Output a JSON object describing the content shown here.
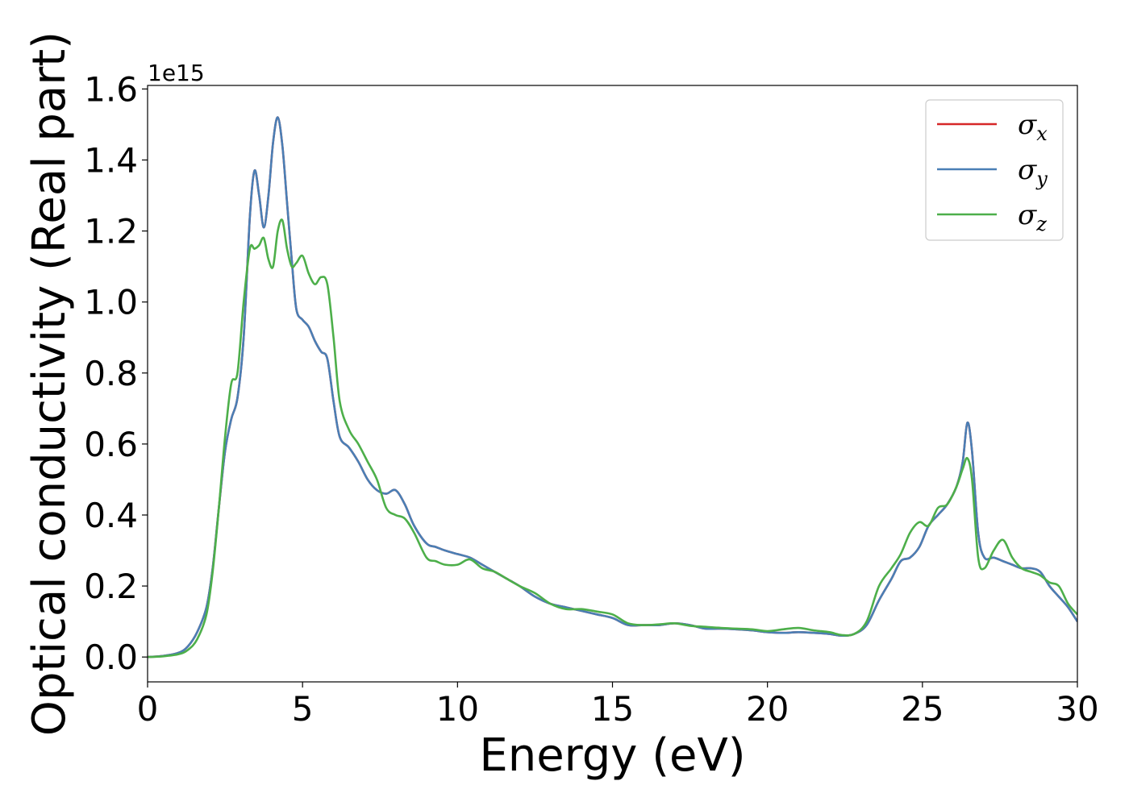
{
  "chart_data": {
    "type": "line",
    "title": "",
    "xlabel": "Energy (eV)",
    "ylabel": "Optical conductivity (Real part)",
    "y_offset_label": "1e15",
    "xlim": [
      0,
      30
    ],
    "ylim": [
      -0.07,
      1.61
    ],
    "x_ticks": [
      0,
      5,
      10,
      15,
      20,
      25,
      30
    ],
    "x_tick_labels": [
      "0",
      "5",
      "10",
      "15",
      "20",
      "25",
      "30"
    ],
    "y_ticks": [
      0.0,
      0.2,
      0.4,
      0.6,
      0.8,
      1.0,
      1.2,
      1.4,
      1.6
    ],
    "y_tick_labels": [
      "0.0",
      "0.2",
      "0.4",
      "0.6",
      "0.8",
      "1.0",
      "1.2",
      "1.4",
      "1.6"
    ],
    "grid": false,
    "legend_position": "top-right",
    "series": [
      {
        "name": "σ",
        "subscript": "x",
        "color": "#d62728",
        "x": [
          0,
          0.5,
          1.0,
          1.3,
          1.6,
          1.9,
          2.1,
          2.3,
          2.5,
          2.7,
          2.9,
          3.1,
          3.3,
          3.45,
          3.6,
          3.75,
          3.9,
          4.05,
          4.2,
          4.35,
          4.5,
          4.65,
          4.8,
          5.0,
          5.2,
          5.4,
          5.6,
          5.8,
          6.0,
          6.2,
          6.5,
          6.8,
          7.1,
          7.4,
          7.7,
          8.0,
          8.3,
          8.6,
          9.0,
          9.3,
          9.6,
          10.0,
          10.4,
          10.8,
          11.2,
          11.6,
          12.0,
          12.5,
          13.0,
          13.5,
          14.0,
          14.5,
          15.0,
          15.5,
          16.0,
          16.5,
          17.0,
          17.5,
          18.0,
          18.5,
          19.0,
          19.5,
          20.0,
          20.5,
          21.0,
          21.5,
          22.0,
          22.4,
          22.8,
          23.2,
          23.6,
          24.0,
          24.3,
          24.6,
          24.9,
          25.2,
          25.5,
          25.8,
          26.1,
          26.3,
          26.45,
          26.6,
          26.8,
          27.0,
          27.3,
          27.6,
          27.9,
          28.2,
          28.5,
          28.8,
          29.1,
          29.4,
          29.7,
          30.0
        ],
        "values": [
          0.0,
          0.003,
          0.012,
          0.03,
          0.07,
          0.14,
          0.25,
          0.42,
          0.58,
          0.67,
          0.73,
          0.9,
          1.24,
          1.37,
          1.3,
          1.21,
          1.3,
          1.45,
          1.52,
          1.44,
          1.28,
          1.12,
          0.98,
          0.95,
          0.93,
          0.89,
          0.86,
          0.84,
          0.72,
          0.62,
          0.59,
          0.55,
          0.5,
          0.47,
          0.46,
          0.47,
          0.43,
          0.37,
          0.32,
          0.31,
          0.3,
          0.29,
          0.28,
          0.26,
          0.24,
          0.22,
          0.2,
          0.17,
          0.15,
          0.14,
          0.13,
          0.12,
          0.11,
          0.09,
          0.09,
          0.09,
          0.095,
          0.09,
          0.08,
          0.08,
          0.078,
          0.075,
          0.07,
          0.068,
          0.07,
          0.068,
          0.065,
          0.06,
          0.065,
          0.09,
          0.16,
          0.22,
          0.27,
          0.28,
          0.31,
          0.37,
          0.4,
          0.43,
          0.48,
          0.55,
          0.66,
          0.58,
          0.35,
          0.28,
          0.28,
          0.27,
          0.26,
          0.25,
          0.25,
          0.24,
          0.2,
          0.17,
          0.14,
          0.1
        ]
      },
      {
        "name": "σ",
        "subscript": "y",
        "color": "#4a7fb5",
        "x": [
          0,
          0.5,
          1.0,
          1.3,
          1.6,
          1.9,
          2.1,
          2.3,
          2.5,
          2.7,
          2.9,
          3.1,
          3.3,
          3.45,
          3.6,
          3.75,
          3.9,
          4.05,
          4.2,
          4.35,
          4.5,
          4.65,
          4.8,
          5.0,
          5.2,
          5.4,
          5.6,
          5.8,
          6.0,
          6.2,
          6.5,
          6.8,
          7.1,
          7.4,
          7.7,
          8.0,
          8.3,
          8.6,
          9.0,
          9.3,
          9.6,
          10.0,
          10.4,
          10.8,
          11.2,
          11.6,
          12.0,
          12.5,
          13.0,
          13.5,
          14.0,
          14.5,
          15.0,
          15.5,
          16.0,
          16.5,
          17.0,
          17.5,
          18.0,
          18.5,
          19.0,
          19.5,
          20.0,
          20.5,
          21.0,
          21.5,
          22.0,
          22.4,
          22.8,
          23.2,
          23.6,
          24.0,
          24.3,
          24.6,
          24.9,
          25.2,
          25.5,
          25.8,
          26.1,
          26.3,
          26.45,
          26.6,
          26.8,
          27.0,
          27.3,
          27.6,
          27.9,
          28.2,
          28.5,
          28.8,
          29.1,
          29.4,
          29.7,
          30.0
        ],
        "values": [
          0.0,
          0.003,
          0.012,
          0.03,
          0.07,
          0.14,
          0.25,
          0.42,
          0.58,
          0.67,
          0.73,
          0.9,
          1.24,
          1.37,
          1.3,
          1.21,
          1.3,
          1.45,
          1.52,
          1.44,
          1.28,
          1.12,
          0.98,
          0.95,
          0.93,
          0.89,
          0.86,
          0.84,
          0.72,
          0.62,
          0.59,
          0.55,
          0.5,
          0.47,
          0.46,
          0.47,
          0.43,
          0.37,
          0.32,
          0.31,
          0.3,
          0.29,
          0.28,
          0.26,
          0.24,
          0.22,
          0.2,
          0.17,
          0.15,
          0.14,
          0.13,
          0.12,
          0.11,
          0.09,
          0.09,
          0.09,
          0.095,
          0.09,
          0.08,
          0.08,
          0.078,
          0.075,
          0.07,
          0.068,
          0.07,
          0.068,
          0.065,
          0.06,
          0.065,
          0.09,
          0.16,
          0.22,
          0.27,
          0.28,
          0.31,
          0.37,
          0.4,
          0.43,
          0.48,
          0.55,
          0.66,
          0.58,
          0.35,
          0.28,
          0.28,
          0.27,
          0.26,
          0.25,
          0.25,
          0.24,
          0.2,
          0.17,
          0.14,
          0.1
        ]
      },
      {
        "name": "σ",
        "subscript": "z",
        "color": "#4daf4a",
        "x": [
          0,
          0.5,
          1.0,
          1.3,
          1.6,
          1.9,
          2.1,
          2.3,
          2.5,
          2.7,
          2.9,
          3.1,
          3.3,
          3.45,
          3.6,
          3.75,
          3.9,
          4.05,
          4.2,
          4.35,
          4.5,
          4.65,
          4.8,
          5.0,
          5.2,
          5.4,
          5.6,
          5.8,
          6.0,
          6.2,
          6.5,
          6.8,
          7.1,
          7.4,
          7.7,
          8.0,
          8.3,
          8.6,
          9.0,
          9.3,
          9.6,
          10.0,
          10.4,
          10.8,
          11.2,
          11.6,
          12.0,
          12.5,
          13.0,
          13.5,
          14.0,
          14.5,
          15.0,
          15.5,
          16.0,
          16.5,
          17.0,
          17.5,
          18.0,
          18.5,
          19.0,
          19.5,
          20.0,
          20.5,
          21.0,
          21.5,
          22.0,
          22.4,
          22.8,
          23.2,
          23.6,
          24.0,
          24.3,
          24.6,
          24.9,
          25.2,
          25.5,
          25.8,
          26.1,
          26.3,
          26.45,
          26.6,
          26.8,
          27.0,
          27.3,
          27.6,
          27.9,
          28.2,
          28.5,
          28.8,
          29.1,
          29.4,
          29.7,
          30.0
        ],
        "values": [
          0.0,
          0.002,
          0.008,
          0.02,
          0.05,
          0.12,
          0.24,
          0.42,
          0.62,
          0.77,
          0.8,
          1.0,
          1.15,
          1.15,
          1.16,
          1.18,
          1.12,
          1.1,
          1.2,
          1.23,
          1.15,
          1.1,
          1.11,
          1.13,
          1.08,
          1.05,
          1.07,
          1.05,
          0.9,
          0.72,
          0.64,
          0.6,
          0.55,
          0.5,
          0.42,
          0.4,
          0.39,
          0.35,
          0.28,
          0.27,
          0.26,
          0.26,
          0.275,
          0.25,
          0.24,
          0.22,
          0.2,
          0.18,
          0.15,
          0.135,
          0.135,
          0.128,
          0.12,
          0.095,
          0.09,
          0.092,
          0.095,
          0.088,
          0.085,
          0.082,
          0.08,
          0.078,
          0.073,
          0.078,
          0.082,
          0.075,
          0.07,
          0.062,
          0.065,
          0.1,
          0.2,
          0.25,
          0.29,
          0.35,
          0.38,
          0.37,
          0.42,
          0.43,
          0.48,
          0.53,
          0.56,
          0.5,
          0.28,
          0.25,
          0.3,
          0.33,
          0.28,
          0.25,
          0.24,
          0.23,
          0.21,
          0.2,
          0.15,
          0.12
        ]
      }
    ]
  }
}
